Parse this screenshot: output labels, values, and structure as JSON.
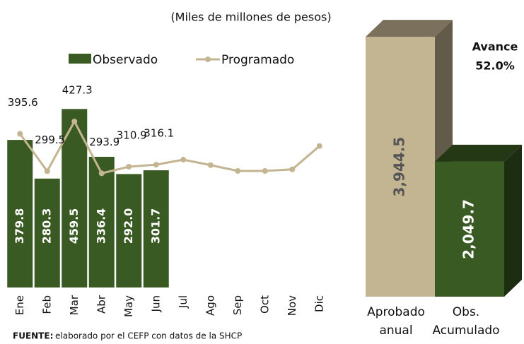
{
  "chart_data": [
    {
      "type": "bar_line",
      "title": "(Miles de millones de pesos)",
      "categories": [
        "Ene",
        "Feb",
        "Mar",
        "Abr",
        "May",
        "Jun",
        "Jul",
        "Ago",
        "Sep",
        "Oct",
        "Nov",
        "Dic"
      ],
      "series": [
        {
          "name": "Observado",
          "type": "bar",
          "color": "#3a5a23",
          "values": [
            379.8,
            280.3,
            459.5,
            336.4,
            292.0,
            301.7,
            null,
            null,
            null,
            null,
            null,
            null
          ],
          "value_labels": [
            "379.8",
            "280.3",
            "459.5",
            "336.4",
            "292.0",
            "301.7",
            null,
            null,
            null,
            null,
            null,
            null
          ]
        },
        {
          "name": "Programado",
          "type": "line",
          "color": "#c4b592",
          "values": [
            395.6,
            299.5,
            427.3,
            293.9,
            310.9,
            316.1,
            329,
            315,
            300,
            300,
            304,
            364
          ],
          "value_labels": [
            "395.6",
            "299.5",
            "427.3",
            "293.9",
            "310.9",
            "316.1",
            null,
            null,
            null,
            null,
            null,
            null
          ]
        }
      ],
      "ylim": [
        0,
        500
      ],
      "source_label": "FUENTE:",
      "source": "elaborado por el CEFP con datos de la SHCP"
    },
    {
      "type": "bar3d",
      "categories": [
        [
          "Aprobado",
          "anual"
        ],
        [
          "Obs.",
          "Acumulado"
        ]
      ],
      "values": [
        3944.5,
        2049.7
      ],
      "value_labels": [
        "3,944.5",
        "2,049.7"
      ],
      "colors": [
        "#c4b592",
        "#3a5a23"
      ],
      "ylim": [
        0,
        4000
      ],
      "annotation": [
        "Avance",
        "52.0%"
      ]
    }
  ]
}
